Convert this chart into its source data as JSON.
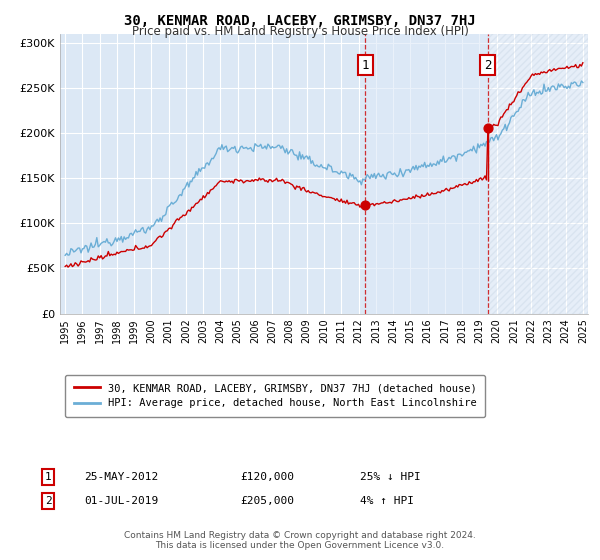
{
  "title": "30, KENMAR ROAD, LACEBY, GRIMSBY, DN37 7HJ",
  "subtitle": "Price paid vs. HM Land Registry's House Price Index (HPI)",
  "legend_line1": "30, KENMAR ROAD, LACEBY, GRIMSBY, DN37 7HJ (detached house)",
  "legend_line2": "HPI: Average price, detached house, North East Lincolnshire",
  "annotation1_label": "1",
  "annotation1_date": "25-MAY-2012",
  "annotation1_price": "£120,000",
  "annotation1_hpi": "25% ↓ HPI",
  "annotation1_year": 2012.4,
  "annotation1_value": 120000,
  "annotation2_label": "2",
  "annotation2_date": "01-JUL-2019",
  "annotation2_price": "£205,000",
  "annotation2_hpi": "4% ↑ HPI",
  "annotation2_year": 2019.5,
  "annotation2_value": 205000,
  "footer": "Contains HM Land Registry data © Crown copyright and database right 2024.\nThis data is licensed under the Open Government Licence v3.0.",
  "hpi_color": "#6baed6",
  "price_color": "#cc0000",
  "background_color": "#dce8f5",
  "shade_color": "#dce8f5",
  "hatch_color": "#cccccc",
  "ylim": [
    0,
    310000
  ],
  "xlim_start": 1994.7,
  "xlim_end": 2025.3
}
